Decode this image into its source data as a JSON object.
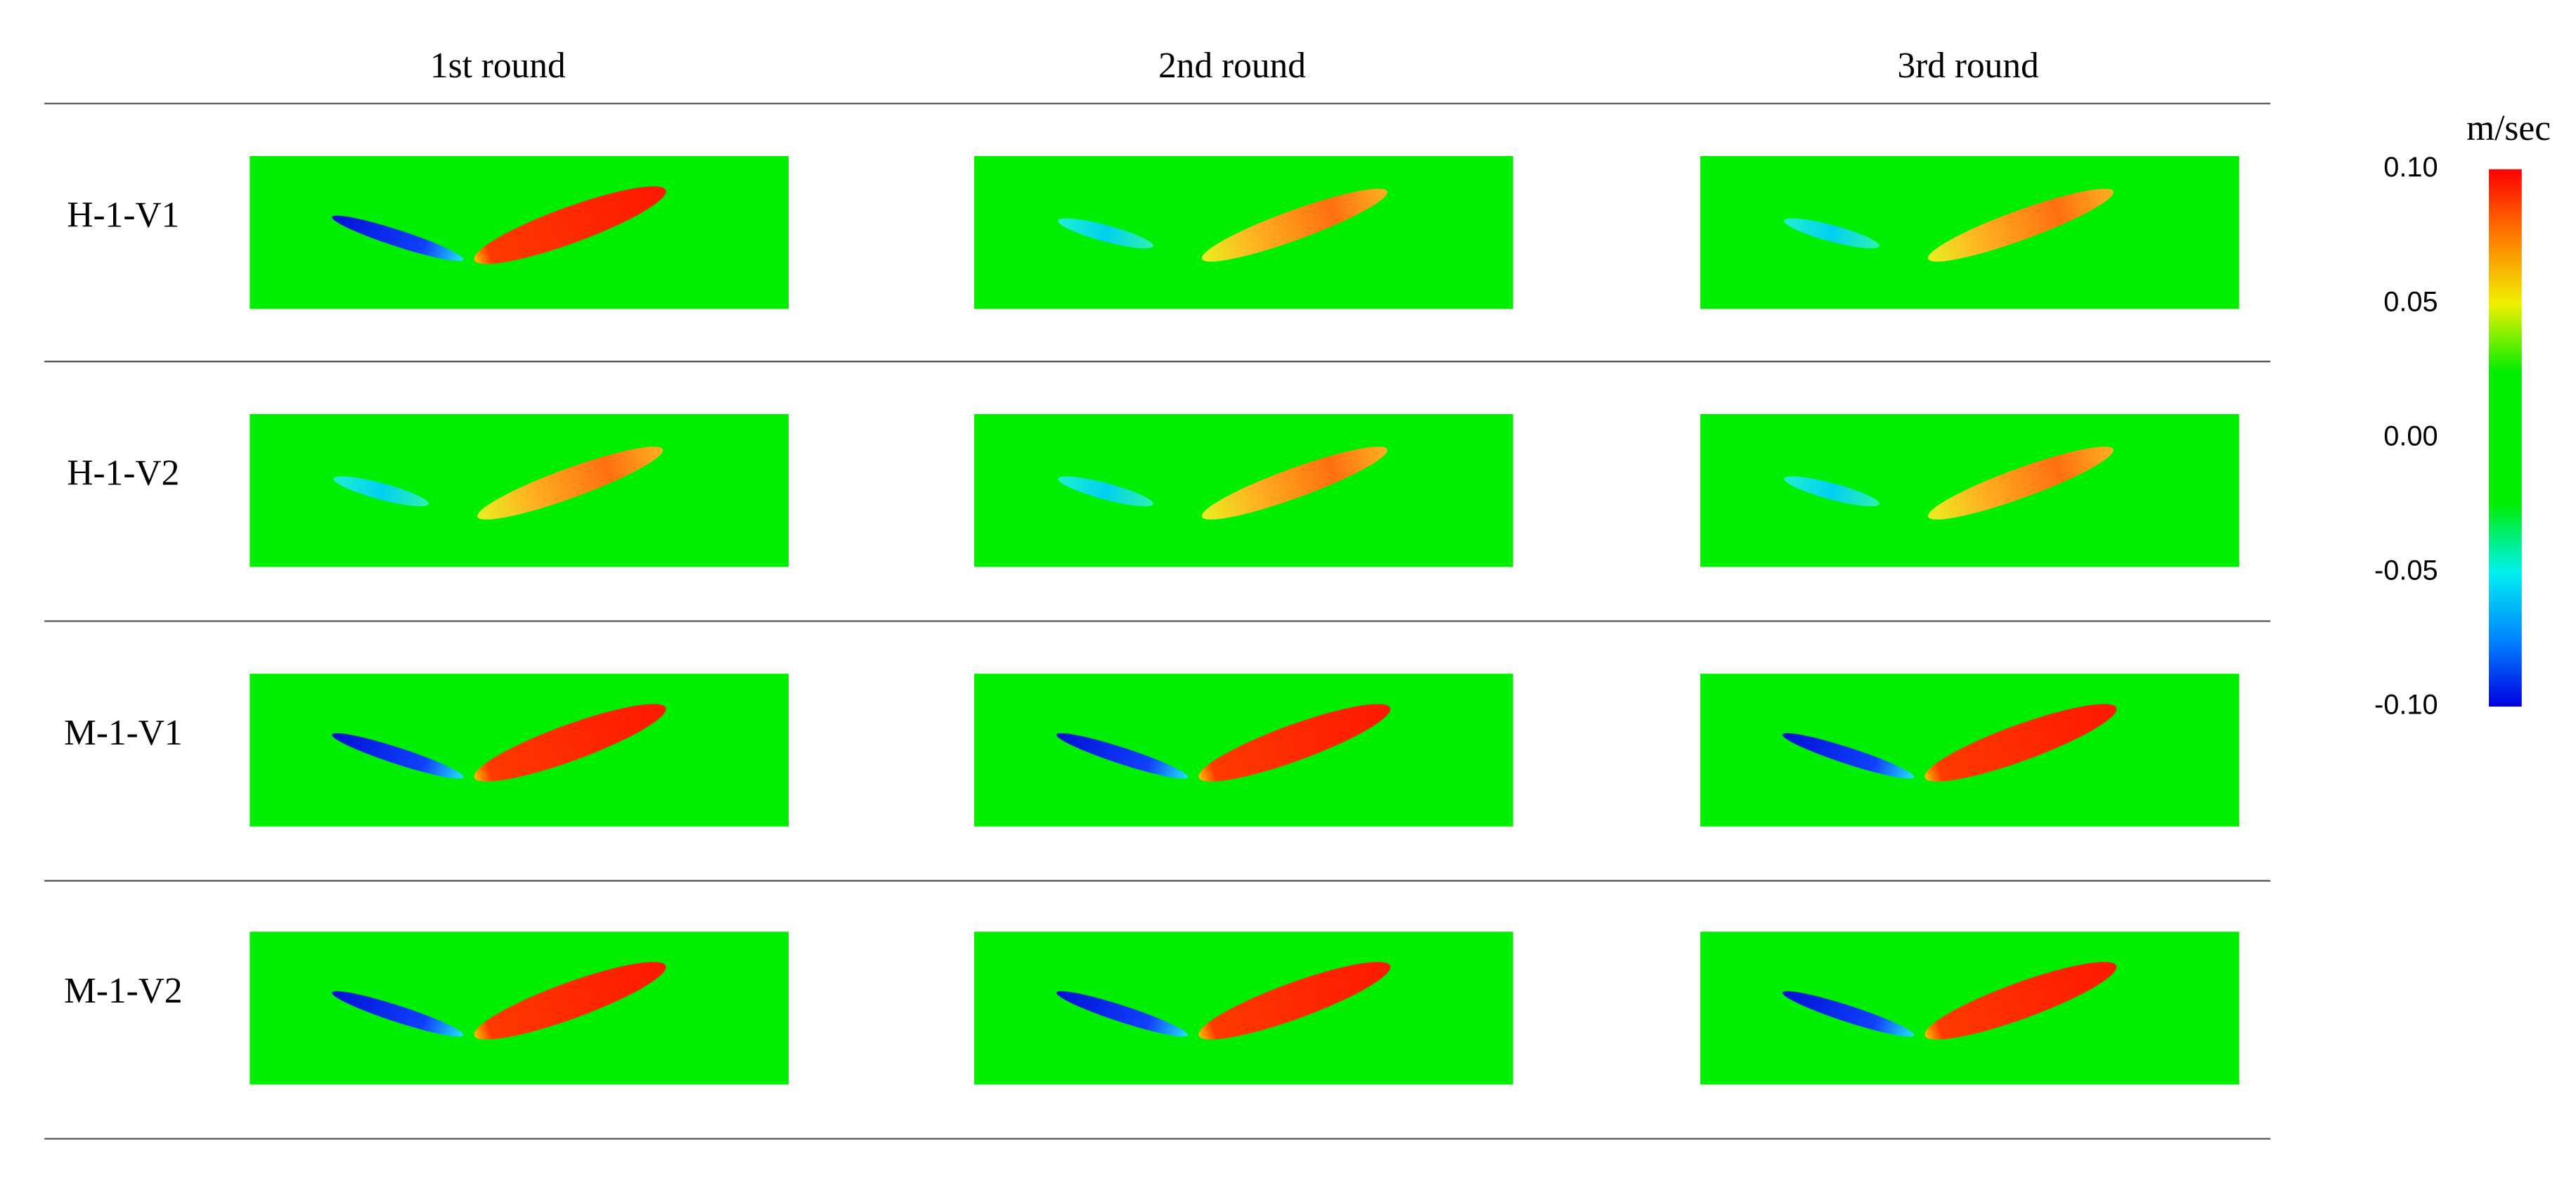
{
  "header": {
    "columns": [
      "1st round",
      "2nd round",
      "3rd round"
    ]
  },
  "rows": [
    {
      "label": "H-1-V1"
    },
    {
      "label": "H-1-V2"
    },
    {
      "label": "M-1-V1"
    },
    {
      "label": "M-1-V2"
    }
  ],
  "colorbar": {
    "unit": "m/sec",
    "lim": [
      -0.1,
      0.1
    ],
    "ticks": [
      {
        "value": 0.1,
        "label": "0.10"
      },
      {
        "value": 0.05,
        "label": "0.05"
      },
      {
        "value": 0,
        "label": "0.00"
      },
      {
        "value": -0.05,
        "label": "-0.05"
      },
      {
        "value": -0.1,
        "label": "-0.10"
      }
    ]
  }
}
